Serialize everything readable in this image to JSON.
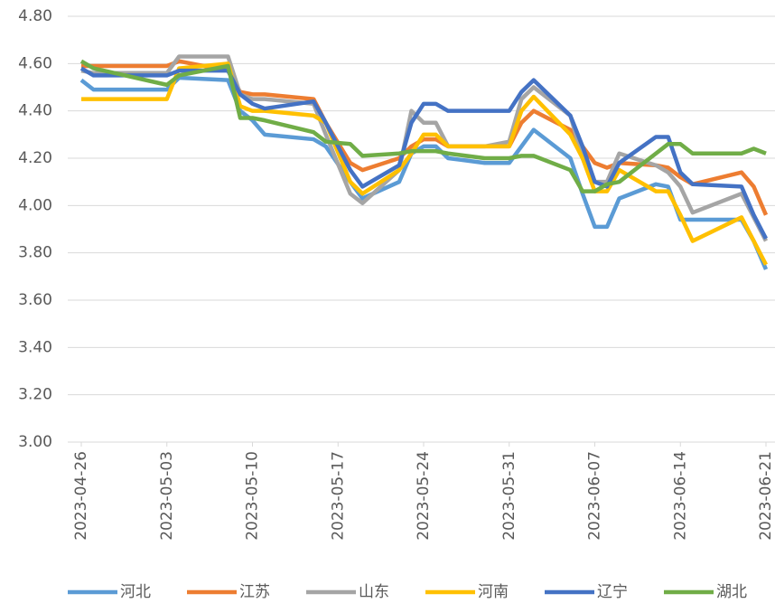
{
  "chart_data": {
    "type": "line",
    "x": [
      "2023-04-26",
      "2023-04-27",
      "2023-05-03",
      "2023-05-04",
      "2023-05-08",
      "2023-05-09",
      "2023-05-10",
      "2023-05-11",
      "2023-05-15",
      "2023-05-16",
      "2023-05-18",
      "2023-05-19",
      "2023-05-22",
      "2023-05-23",
      "2023-05-24",
      "2023-05-25",
      "2023-05-26",
      "2023-05-29",
      "2023-05-31",
      "2023-06-01",
      "2023-06-02",
      "2023-06-05",
      "2023-06-06",
      "2023-06-07",
      "2023-06-08",
      "2023-06-09",
      "2023-06-12",
      "2023-06-13",
      "2023-06-14",
      "2023-06-15",
      "2023-06-19",
      "2023-06-20",
      "2023-06-21"
    ],
    "xlim": [
      "2023-04-26",
      "2023-06-21"
    ],
    "xticks": [
      "2023-04-26",
      "2023-05-03",
      "2023-05-10",
      "2023-05-17",
      "2023-05-24",
      "2023-05-31",
      "2023-06-07",
      "2023-06-14",
      "2023-06-21"
    ],
    "ylim": [
      3.0,
      4.8
    ],
    "yticks": [
      {
        "value": 3.0,
        "label": "3.00"
      },
      {
        "value": 3.2,
        "label": "3.20"
      },
      {
        "value": 3.4,
        "label": "3.40"
      },
      {
        "value": 3.6,
        "label": "3.60"
      },
      {
        "value": 3.8,
        "label": "3.80"
      },
      {
        "value": 4.0,
        "label": "4.00"
      },
      {
        "value": 4.2,
        "label": "4.20"
      },
      {
        "value": 4.4,
        "label": "4.40"
      },
      {
        "value": 4.6,
        "label": "4.60"
      },
      {
        "value": 4.8,
        "label": "4.80"
      }
    ],
    "grid": true,
    "legend": "bottom",
    "series": [
      {
        "name": "河北",
        "color": "#5b9bd5",
        "values": [
          4.53,
          4.49,
          4.49,
          4.54,
          4.53,
          4.4,
          4.36,
          4.3,
          4.28,
          4.25,
          4.1,
          4.03,
          4.1,
          4.22,
          4.25,
          4.25,
          4.2,
          4.18,
          4.18,
          4.25,
          4.32,
          4.2,
          4.05,
          3.91,
          3.91,
          4.03,
          4.09,
          4.08,
          3.94,
          3.94,
          3.94,
          3.85,
          3.73
        ]
      },
      {
        "name": "江苏",
        "color": "#ed7d31",
        "values": [
          4.59,
          4.59,
          4.59,
          4.61,
          4.57,
          4.48,
          4.47,
          4.47,
          4.45,
          4.35,
          4.18,
          4.15,
          4.2,
          4.25,
          4.28,
          4.28,
          4.25,
          4.25,
          4.25,
          4.35,
          4.4,
          4.32,
          4.25,
          4.18,
          4.16,
          4.18,
          4.17,
          4.16,
          4.12,
          4.09,
          4.14,
          4.08,
          3.96
        ]
      },
      {
        "name": "山东",
        "color": "#a5a5a5",
        "values": [
          4.57,
          4.56,
          4.56,
          4.63,
          4.63,
          4.47,
          4.45,
          4.45,
          4.43,
          4.3,
          4.05,
          4.01,
          4.15,
          4.4,
          4.35,
          4.35,
          4.25,
          4.25,
          4.27,
          4.45,
          4.5,
          4.38,
          4.2,
          4.1,
          4.1,
          4.22,
          4.17,
          4.14,
          4.08,
          3.97,
          4.05,
          3.95,
          3.85
        ]
      },
      {
        "name": "河南",
        "color": "#ffc000",
        "values": [
          4.45,
          4.45,
          4.45,
          4.58,
          4.6,
          4.42,
          4.4,
          4.4,
          4.38,
          4.35,
          4.1,
          4.05,
          4.15,
          4.22,
          4.3,
          4.3,
          4.25,
          4.25,
          4.25,
          4.4,
          4.46,
          4.3,
          4.2,
          4.06,
          4.06,
          4.15,
          4.06,
          4.06,
          3.96,
          3.85,
          3.95,
          3.85,
          3.75
        ]
      },
      {
        "name": "辽宁",
        "color": "#4472c4",
        "values": [
          4.58,
          4.55,
          4.55,
          4.57,
          4.57,
          4.47,
          4.43,
          4.41,
          4.44,
          4.35,
          4.15,
          4.08,
          4.17,
          4.35,
          4.43,
          4.43,
          4.4,
          4.4,
          4.4,
          4.48,
          4.53,
          4.38,
          4.25,
          4.1,
          4.08,
          4.18,
          4.29,
          4.29,
          4.14,
          4.09,
          4.08,
          3.96,
          3.86
        ]
      },
      {
        "name": "湖北",
        "color": "#70ad47",
        "values": [
          4.61,
          4.58,
          4.51,
          4.55,
          4.59,
          4.37,
          4.37,
          4.36,
          4.31,
          4.27,
          4.26,
          4.21,
          4.22,
          4.23,
          4.23,
          4.23,
          4.22,
          4.2,
          4.2,
          4.21,
          4.21,
          4.15,
          4.06,
          4.06,
          4.09,
          4.1,
          4.22,
          4.26,
          4.26,
          4.22,
          4.22,
          4.24,
          4.22
        ]
      }
    ]
  }
}
